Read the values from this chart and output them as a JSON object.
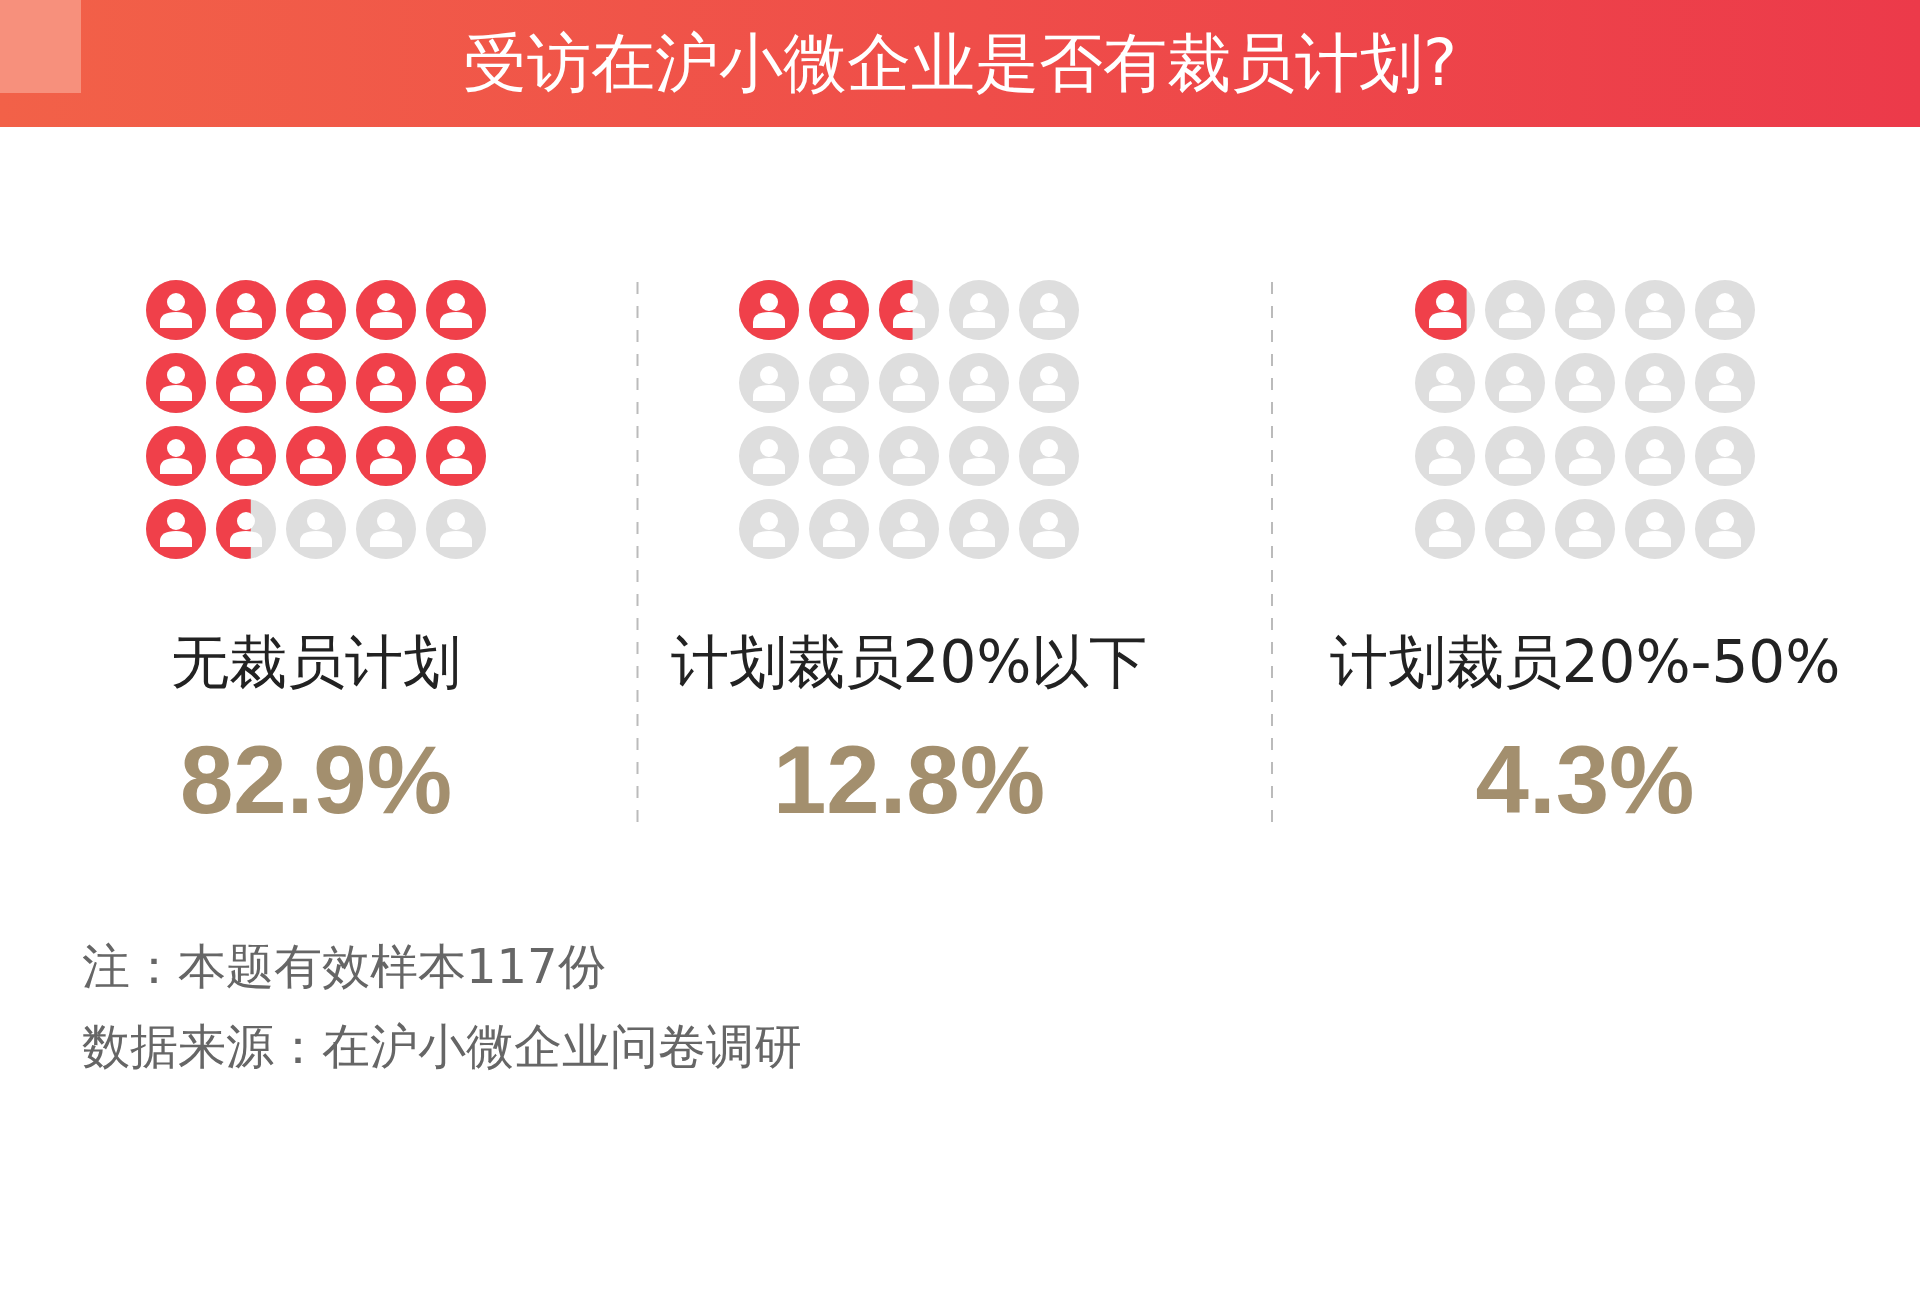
{
  "chart_data": {
    "type": "other",
    "title": "受访在沪小微企业是否有裁员计划?",
    "categories": [
      "无裁员计划",
      "计划裁员20%以下",
      "计划裁员20%-50%"
    ],
    "values": [
      82.9,
      12.8,
      4.3
    ],
    "value_labels": [
      "82.9%",
      "12.8%",
      "4.3%"
    ],
    "color": "#f0404a",
    "annotations": [
      "注：本题有效样本117份",
      "数据来源：在沪小微企业问卷调研"
    ]
  }
}
